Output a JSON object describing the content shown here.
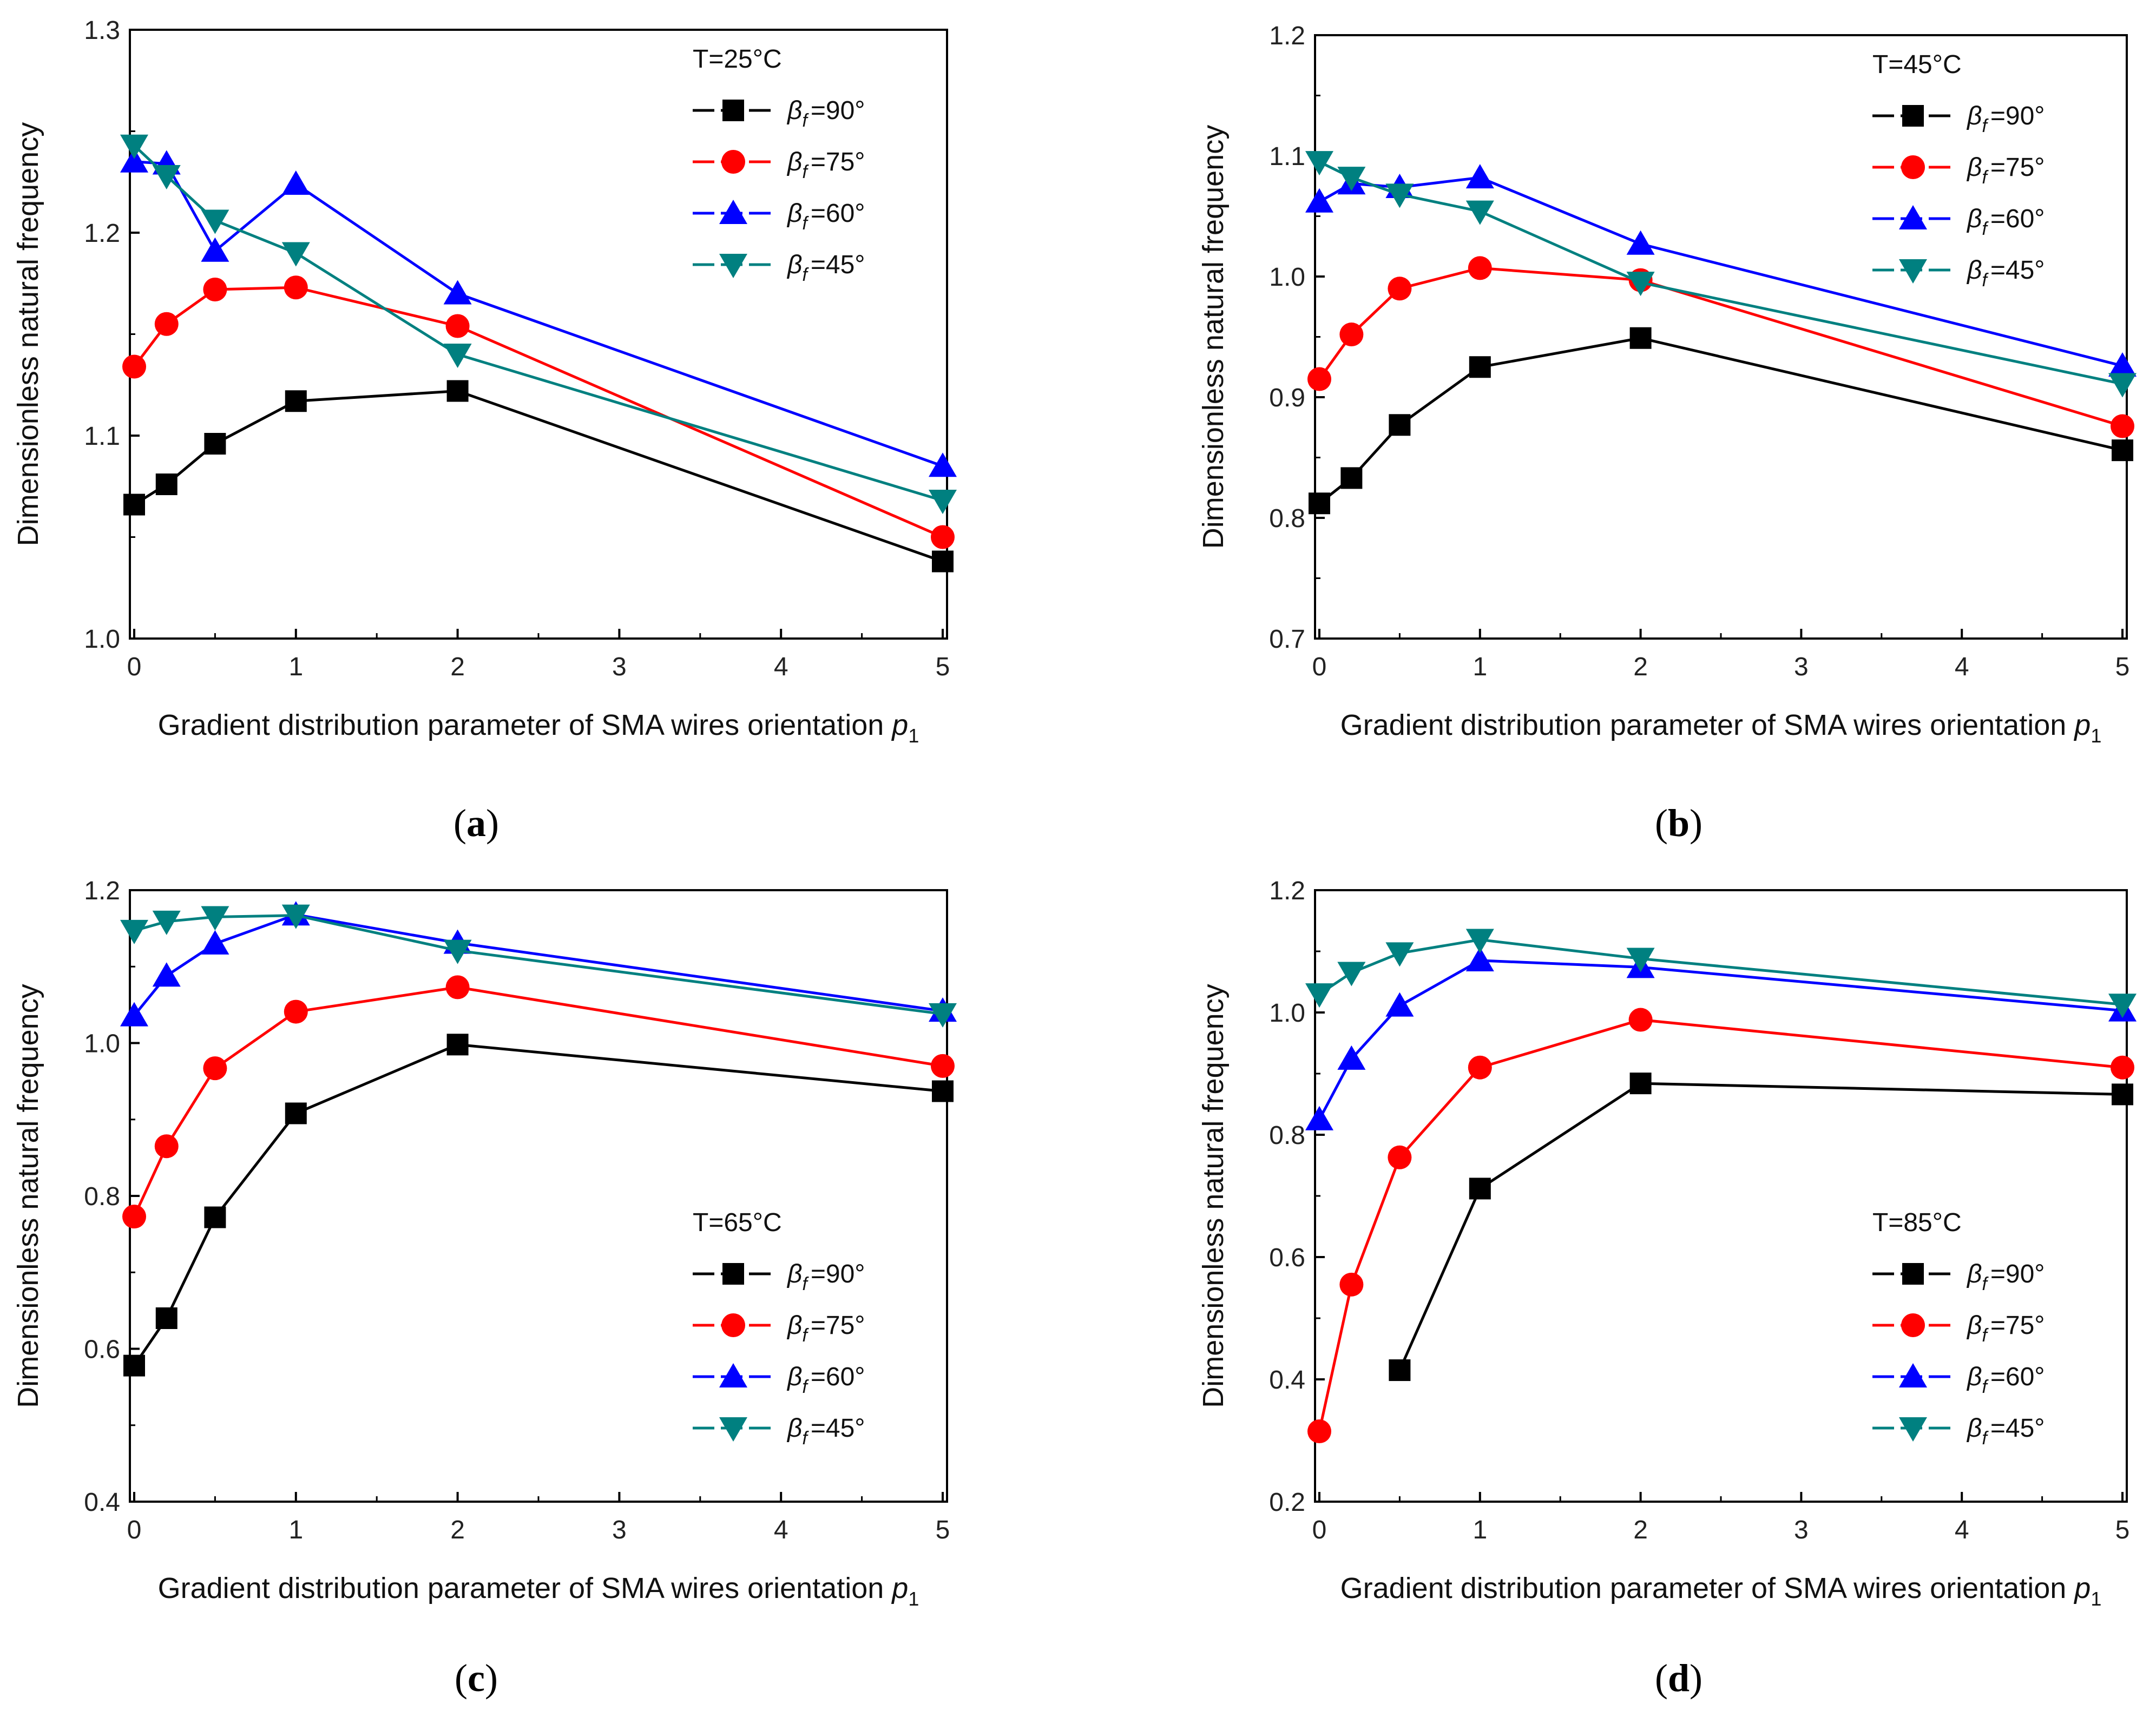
{
  "colors": {
    "beta90": "#000000",
    "beta75": "#ff0000",
    "beta60": "#0000ff",
    "beta45": "#008080",
    "axis": "#000000"
  },
  "chart_data": [
    {
      "panel_label": "a",
      "type": "line",
      "title": "",
      "legend_title": "T=25°C",
      "legend_position": "top-right",
      "xlabel": "Gradient distribution parameter of SMA wires orientation p1",
      "ylabel": "Dimensionless natural frequency",
      "xlim": [
        0,
        5
      ],
      "ylim": [
        1.0,
        1.3
      ],
      "xticks": [
        0,
        1,
        2,
        3,
        4,
        5
      ],
      "yticks": [
        1.0,
        1.1,
        1.2,
        1.3
      ],
      "ytick_labels": [
        "1.0",
        "1.1",
        "1.2",
        "1.3"
      ],
      "series": [
        {
          "name": "βf=90°",
          "marker": "square",
          "color": "#000000",
          "x": [
            0,
            0.2,
            0.5,
            1,
            2,
            5
          ],
          "values": [
            1.066,
            1.076,
            1.096,
            1.117,
            1.122,
            1.038
          ]
        },
        {
          "name": "βf=75°",
          "marker": "circle",
          "color": "#ff0000",
          "x": [
            0,
            0.2,
            0.5,
            1,
            2,
            5
          ],
          "values": [
            1.134,
            1.155,
            1.172,
            1.173,
            1.154,
            1.05
          ]
        },
        {
          "name": "βf=60°",
          "marker": "triangle-up",
          "color": "#0000ff",
          "x": [
            0,
            0.2,
            0.5,
            1,
            2,
            5
          ],
          "values": [
            1.235,
            1.234,
            1.191,
            1.224,
            1.17,
            1.085
          ]
        },
        {
          "name": "βf=45°",
          "marker": "triangle-down",
          "color": "#008080",
          "x": [
            0,
            0.2,
            0.5,
            1,
            2,
            5
          ],
          "values": [
            1.243,
            1.228,
            1.206,
            1.19,
            1.14,
            1.068
          ]
        }
      ]
    },
    {
      "panel_label": "b",
      "type": "line",
      "title": "",
      "legend_title": "T=45°C",
      "legend_position": "top-right",
      "xlabel": "Gradient distribution parameter of SMA wires orientation p1",
      "ylabel": "Dimensionless natural frequency",
      "xlim": [
        0,
        5
      ],
      "ylim": [
        0.7,
        1.2
      ],
      "xticks": [
        0,
        1,
        2,
        3,
        4,
        5
      ],
      "yticks": [
        0.7,
        0.8,
        0.9,
        1.0,
        1.1,
        1.2
      ],
      "ytick_labels": [
        "0.7",
        "0.8",
        "0.9",
        "1.0",
        "1.1",
        "1.2"
      ],
      "series": [
        {
          "name": "βf=90°",
          "marker": "square",
          "color": "#000000",
          "x": [
            0,
            0.2,
            0.5,
            1,
            2,
            5
          ],
          "values": [
            0.812,
            0.833,
            0.877,
            0.925,
            0.949,
            0.856
          ]
        },
        {
          "name": "βf=75°",
          "marker": "circle",
          "color": "#ff0000",
          "x": [
            0,
            0.2,
            0.5,
            1,
            2,
            5
          ],
          "values": [
            0.915,
            0.952,
            0.99,
            1.007,
            0.997,
            0.876
          ]
        },
        {
          "name": "βf=60°",
          "marker": "triangle-up",
          "color": "#0000ff",
          "x": [
            0,
            0.2,
            0.5,
            1,
            2,
            5
          ],
          "values": [
            1.062,
            1.077,
            1.074,
            1.082,
            1.027,
            0.926
          ]
        },
        {
          "name": "βf=45°",
          "marker": "triangle-down",
          "color": "#008080",
          "x": [
            0,
            0.2,
            0.5,
            1,
            2,
            5
          ],
          "values": [
            1.095,
            1.082,
            1.068,
            1.054,
            0.995,
            0.911
          ]
        }
      ]
    },
    {
      "panel_label": "c",
      "type": "line",
      "title": "",
      "legend_title": "T=65°C",
      "legend_position": "bottom-right",
      "xlabel": "Gradient distribution parameter of SMA wires orientation p1",
      "ylabel": "Dimensionless natural frequency",
      "xlim": [
        0,
        5
      ],
      "ylim": [
        0.4,
        1.2
      ],
      "xticks": [
        0,
        1,
        2,
        3,
        4,
        5
      ],
      "yticks": [
        0.4,
        0.6,
        0.8,
        1.0,
        1.2
      ],
      "ytick_labels": [
        "0.4",
        "0.6",
        "0.8",
        "1.0",
        "1.2"
      ],
      "series": [
        {
          "name": "βf=90°",
          "marker": "square",
          "color": "#000000",
          "x": [
            0,
            0.2,
            0.5,
            1,
            2,
            5
          ],
          "values": [
            0.578,
            0.64,
            0.772,
            0.908,
            0.998,
            0.937
          ]
        },
        {
          "name": "βf=75°",
          "marker": "circle",
          "color": "#ff0000",
          "x": [
            0,
            0.2,
            0.5,
            1,
            2,
            5
          ],
          "values": [
            0.773,
            0.865,
            0.967,
            1.041,
            1.073,
            0.97
          ]
        },
        {
          "name": "βf=60°",
          "marker": "triangle-up",
          "color": "#0000ff",
          "x": [
            0,
            0.2,
            0.5,
            1,
            2,
            5
          ],
          "values": [
            1.036,
            1.088,
            1.13,
            1.168,
            1.131,
            1.042
          ]
        },
        {
          "name": "βf=45°",
          "marker": "triangle-down",
          "color": "#008080",
          "x": [
            0,
            0.2,
            0.5,
            1,
            2,
            5
          ],
          "values": [
            1.147,
            1.159,
            1.165,
            1.167,
            1.121,
            1.038
          ]
        }
      ]
    },
    {
      "panel_label": "d",
      "type": "line",
      "title": "",
      "legend_title": "T=85°C",
      "legend_position": "bottom-right",
      "xlabel": "Gradient distribution parameter of SMA wires orientation p1",
      "ylabel": "Dimensionless natural frequency",
      "xlim": [
        0,
        5
      ],
      "ylim": [
        0.2,
        1.2
      ],
      "xticks": [
        0,
        1,
        2,
        3,
        4,
        5
      ],
      "yticks": [
        0.2,
        0.4,
        0.6,
        0.8,
        1.0,
        1.2
      ],
      "ytick_labels": [
        "0.2",
        "0.4",
        "0.6",
        "0.8",
        "1.0",
        "1.2"
      ],
      "series": [
        {
          "name": "βf=90°",
          "marker": "square",
          "color": "#000000",
          "x": [
            0.5,
            1,
            2,
            5
          ],
          "values": [
            0.415,
            0.712,
            0.884,
            0.866
          ]
        },
        {
          "name": "βf=75°",
          "marker": "circle",
          "color": "#ff0000",
          "x": [
            0,
            0.2,
            0.5,
            1,
            2,
            5
          ],
          "values": [
            0.315,
            0.555,
            0.763,
            0.91,
            0.988,
            0.91
          ]
        },
        {
          "name": "βf=60°",
          "marker": "triangle-up",
          "color": "#0000ff",
          "x": [
            0,
            0.2,
            0.5,
            1,
            2,
            5
          ],
          "values": [
            0.825,
            0.924,
            1.011,
            1.085,
            1.074,
            1.003
          ]
        },
        {
          "name": "βf=45°",
          "marker": "triangle-down",
          "color": "#008080",
          "x": [
            0,
            0.2,
            0.5,
            1,
            2,
            5
          ],
          "values": [
            1.03,
            1.065,
            1.097,
            1.119,
            1.088,
            1.013
          ]
        }
      ]
    }
  ]
}
